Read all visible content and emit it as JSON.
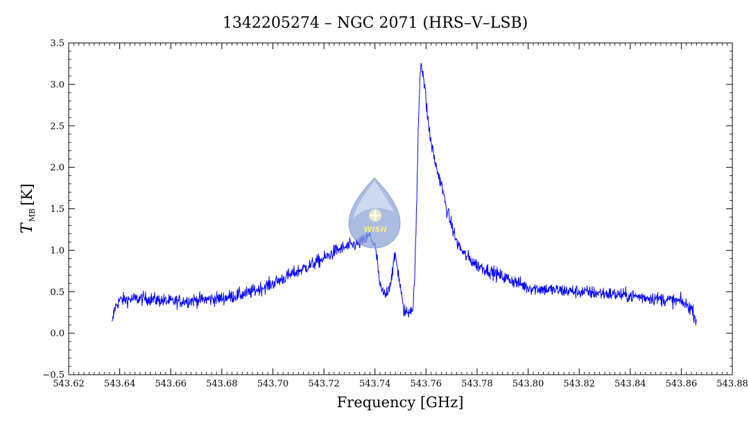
{
  "chart_data": {
    "type": "line",
    "title": "1342205274 – NGC 2071 (HRS–V–LSB)",
    "xlabel": "Frequency [GHz]",
    "ylabel": {
      "symbol": "T",
      "subscript": "MB",
      "unit": "[K]"
    },
    "xlim": [
      543.62,
      543.88
    ],
    "ylim": [
      -0.5,
      3.5
    ],
    "x_ticks": [
      "543.62",
      "543.64",
      "543.66",
      "543.68",
      "543.70",
      "543.72",
      "543.74",
      "543.76",
      "543.78",
      "543.80",
      "543.82",
      "543.84",
      "543.86",
      "543.88"
    ],
    "y_ticks": [
      "−0.5",
      "0.0",
      "0.5",
      "1.0",
      "1.5",
      "2.0",
      "2.5",
      "3.0",
      "3.5"
    ],
    "grid": false,
    "series": [
      {
        "color": "#0000ff",
        "noise": 0.08,
        "x": [
          543.637,
          543.638,
          543.64,
          543.65,
          543.66,
          543.67,
          543.68,
          543.69,
          543.7,
          543.71,
          543.72,
          543.725,
          543.73,
          543.735,
          543.738,
          543.74,
          543.741,
          543.742,
          543.744,
          543.746,
          543.748,
          543.75,
          543.751,
          543.752,
          543.753,
          543.754,
          543.755,
          543.756,
          543.757,
          543.7575,
          543.758,
          543.759,
          543.76,
          543.761,
          543.762,
          543.764,
          543.766,
          543.768,
          543.77,
          543.772,
          543.775,
          543.78,
          543.785,
          543.79,
          543.795,
          543.8,
          543.81,
          543.82,
          543.83,
          543.84,
          543.85,
          543.86,
          543.864,
          543.866
        ],
        "y": [
          0.1,
          0.3,
          0.4,
          0.42,
          0.38,
          0.4,
          0.42,
          0.48,
          0.6,
          0.75,
          0.9,
          1.0,
          1.05,
          1.1,
          1.18,
          1.05,
          0.85,
          0.55,
          0.45,
          0.6,
          0.95,
          0.55,
          0.3,
          0.25,
          0.25,
          0.3,
          0.3,
          1.1,
          2.5,
          3.0,
          3.3,
          3.1,
          2.8,
          2.5,
          2.3,
          2.0,
          1.8,
          1.5,
          1.3,
          1.1,
          0.95,
          0.82,
          0.75,
          0.68,
          0.62,
          0.55,
          0.52,
          0.5,
          0.48,
          0.45,
          0.42,
          0.38,
          0.3,
          0.15
        ]
      }
    ]
  },
  "logo": {
    "text": "WISH"
  }
}
